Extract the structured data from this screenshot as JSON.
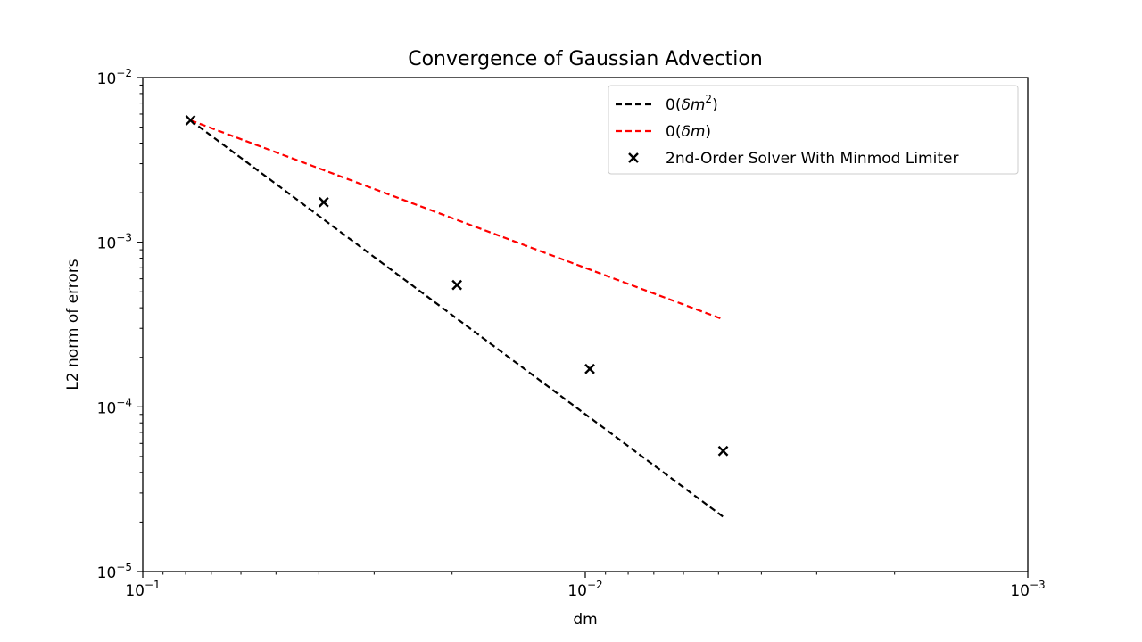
{
  "chart_data": {
    "type": "scatter",
    "title": "Convergence of Gaussian Advection",
    "xlabel": "dm",
    "ylabel": "L2 norm of errors",
    "xscale": "log",
    "yscale": "log",
    "x_inverted": true,
    "xlim": [
      0.1,
      0.001
    ],
    "ylim": [
      1e-05,
      0.01
    ],
    "grid": false,
    "legend_position": "top-right",
    "x_major_ticks": [
      {
        "value": 0.1,
        "base": "10",
        "exp": "−1"
      },
      {
        "value": 0.01,
        "base": "10",
        "exp": "−2"
      },
      {
        "value": 0.001,
        "base": "10",
        "exp": "−3"
      }
    ],
    "y_major_ticks": [
      {
        "value": 0.01,
        "base": "10",
        "exp": "−2"
      },
      {
        "value": 0.001,
        "base": "10",
        "exp": "−3"
      },
      {
        "value": 0.0001,
        "base": "10",
        "exp": "−4"
      },
      {
        "value": 1e-05,
        "base": "10",
        "exp": "−5"
      }
    ],
    "series": [
      {
        "name": "0(δm²)",
        "legend_text": "0(",
        "legend_italic": "δm",
        "legend_sup": "2",
        "legend_close": ")",
        "kind": "line",
        "style": "dashed",
        "color": "#000000",
        "x": [
          0.078,
          0.00488
        ],
        "y": [
          0.0055,
          2.15e-05
        ]
      },
      {
        "name": "0(δm)",
        "legend_text": "0(",
        "legend_italic": "δm",
        "legend_sup": "",
        "legend_close": ")",
        "kind": "line",
        "style": "dashed",
        "color": "#ff0000",
        "x": [
          0.078,
          0.00488
        ],
        "y": [
          0.0055,
          0.00034
        ]
      },
      {
        "name": "2nd-Order Solver With Minmod Limiter",
        "kind": "scatter",
        "marker": "x",
        "color": "#000000",
        "x": [
          0.078,
          0.039,
          0.0195,
          0.00977,
          0.00488
        ],
        "y": [
          0.0055,
          0.00175,
          0.00055,
          0.00017,
          5.4e-05
        ]
      }
    ]
  }
}
